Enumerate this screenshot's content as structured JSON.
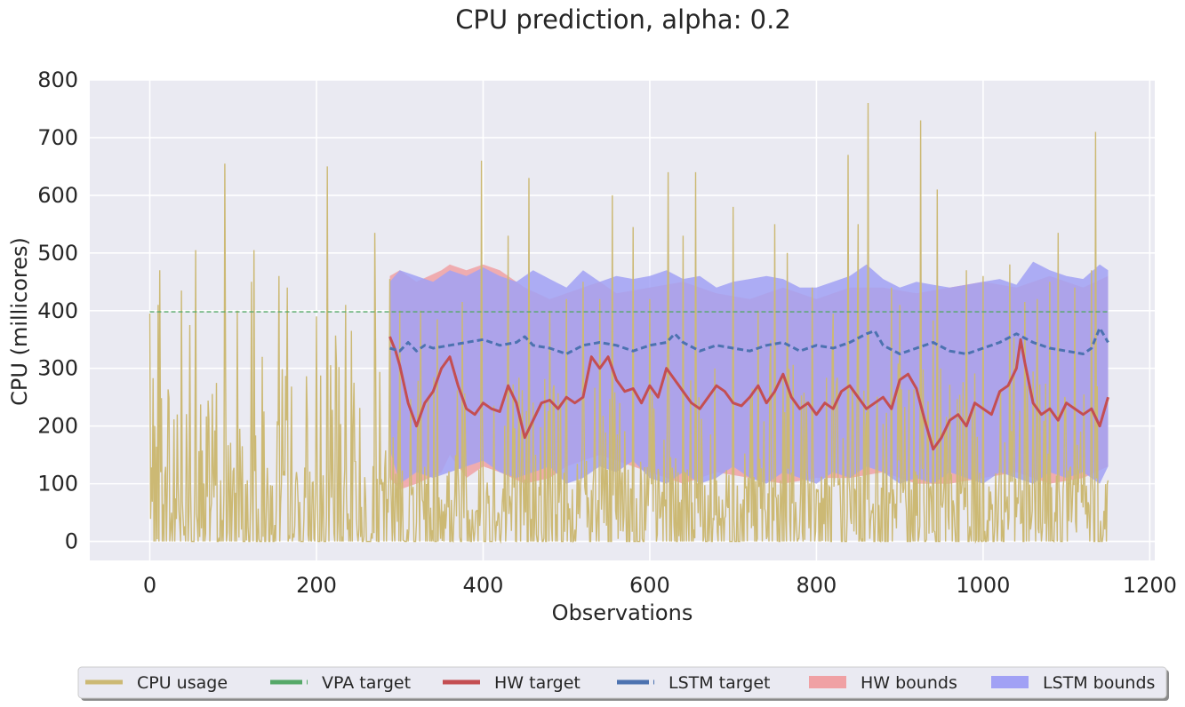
{
  "chart_data": {
    "type": "line",
    "title": "CPU prediction, alpha: 0.2",
    "xlabel": "Observations",
    "ylabel": "CPU (millicores)",
    "xlim": [
      -72,
      1206
    ],
    "ylim": [
      -33,
      800
    ],
    "x_ticks": [
      0,
      200,
      400,
      600,
      800,
      1000,
      1200
    ],
    "x_tick_labels": [
      "0",
      "200",
      "400",
      "600",
      "800",
      "1000",
      "1200"
    ],
    "y_ticks": [
      0,
      100,
      200,
      300,
      400,
      500,
      600,
      700,
      800
    ],
    "y_tick_labels": [
      "0",
      "100",
      "200",
      "300",
      "400",
      "500",
      "600",
      "700",
      "800"
    ],
    "grid": true,
    "legend_position": "bottom-center",
    "background": "#eaeaf2",
    "series": [
      {
        "name": "CPU usage",
        "kind": "line",
        "color": "#ccb974",
        "x_range": [
          0,
          1150
        ],
        "peaks": [
          [
            0,
            395
          ],
          [
            10,
            410
          ],
          [
            12,
            470
          ],
          [
            38,
            435
          ],
          [
            48,
            375
          ],
          [
            55,
            505
          ],
          [
            90,
            655
          ],
          [
            105,
            400
          ],
          [
            122,
            450
          ],
          [
            125,
            505
          ],
          [
            135,
            320
          ],
          [
            155,
            460
          ],
          [
            165,
            440
          ],
          [
            200,
            390
          ],
          [
            213,
            650
          ],
          [
            235,
            410
          ],
          [
            242,
            365
          ],
          [
            270,
            535
          ],
          [
            288,
            455
          ],
          [
            300,
            400
          ],
          [
            325,
            400
          ],
          [
            345,
            385
          ],
          [
            375,
            415
          ],
          [
            398,
            660
          ],
          [
            430,
            530
          ],
          [
            455,
            630
          ],
          [
            480,
            400
          ],
          [
            500,
            420
          ],
          [
            520,
            450
          ],
          [
            540,
            420
          ],
          [
            555,
            600
          ],
          [
            580,
            545
          ],
          [
            600,
            420
          ],
          [
            622,
            640
          ],
          [
            640,
            530
          ],
          [
            655,
            640
          ],
          [
            700,
            580
          ],
          [
            730,
            400
          ],
          [
            750,
            550
          ],
          [
            765,
            500
          ],
          [
            795,
            440
          ],
          [
            820,
            395
          ],
          [
            838,
            670
          ],
          [
            850,
            550
          ],
          [
            862,
            760
          ],
          [
            890,
            440
          ],
          [
            900,
            410
          ],
          [
            925,
            730
          ],
          [
            945,
            610
          ],
          [
            980,
            470
          ],
          [
            1000,
            460
          ],
          [
            1032,
            480
          ],
          [
            1050,
            415
          ],
          [
            1065,
            420
          ],
          [
            1080,
            450
          ],
          [
            1090,
            535
          ],
          [
            1110,
            440
          ],
          [
            1130,
            470
          ],
          [
            1135,
            710
          ]
        ]
      },
      {
        "name": "VPA target",
        "kind": "dashed-line",
        "color": "#55a868",
        "x": [
          0,
          1150
        ],
        "y": [
          398,
          398
        ]
      },
      {
        "name": "HW target",
        "kind": "line",
        "color": "#c44e52",
        "x": [
          288,
          295,
          300,
          310,
          320,
          330,
          340,
          350,
          360,
          370,
          380,
          390,
          400,
          410,
          420,
          430,
          440,
          450,
          460,
          470,
          480,
          490,
          500,
          510,
          520,
          530,
          540,
          550,
          560,
          570,
          580,
          590,
          600,
          610,
          620,
          630,
          640,
          650,
          660,
          670,
          680,
          690,
          700,
          710,
          720,
          730,
          740,
          750,
          760,
          770,
          780,
          790,
          800,
          810,
          820,
          830,
          840,
          850,
          860,
          870,
          880,
          890,
          900,
          910,
          920,
          930,
          940,
          950,
          960,
          970,
          980,
          990,
          1000,
          1010,
          1020,
          1030,
          1040,
          1045,
          1050,
          1060,
          1070,
          1080,
          1090,
          1100,
          1110,
          1120,
          1130,
          1140,
          1150
        ],
        "y": [
          355,
          330,
          305,
          240,
          200,
          240,
          260,
          300,
          320,
          270,
          230,
          220,
          240,
          230,
          225,
          270,
          240,
          180,
          210,
          240,
          245,
          230,
          250,
          240,
          250,
          320,
          300,
          320,
          280,
          260,
          265,
          240,
          270,
          250,
          300,
          280,
          260,
          240,
          230,
          250,
          270,
          260,
          240,
          235,
          250,
          270,
          240,
          260,
          290,
          250,
          230,
          240,
          220,
          240,
          230,
          260,
          270,
          250,
          230,
          240,
          250,
          230,
          280,
          290,
          265,
          210,
          160,
          180,
          210,
          220,
          200,
          240,
          230,
          220,
          260,
          270,
          300,
          350,
          310,
          240,
          220,
          230,
          210,
          240,
          230,
          220,
          230,
          200,
          250
        ]
      },
      {
        "name": "LSTM target",
        "kind": "dashed-line",
        "color": "#4c72b0",
        "x": [
          288,
          300,
          310,
          320,
          330,
          340,
          360,
          380,
          400,
          420,
          440,
          450,
          460,
          480,
          500,
          520,
          540,
          560,
          580,
          600,
          620,
          630,
          640,
          660,
          680,
          700,
          720,
          740,
          760,
          780,
          800,
          820,
          840,
          860,
          870,
          880,
          900,
          920,
          940,
          960,
          980,
          1000,
          1020,
          1040,
          1060,
          1080,
          1100,
          1120,
          1130,
          1140,
          1150
        ],
        "y": [
          335,
          330,
          345,
          330,
          340,
          335,
          340,
          345,
          350,
          340,
          345,
          355,
          340,
          335,
          325,
          340,
          345,
          340,
          330,
          340,
          345,
          360,
          345,
          330,
          340,
          335,
          330,
          340,
          345,
          330,
          340,
          335,
          345,
          360,
          365,
          340,
          325,
          335,
          345,
          330,
          325,
          335,
          345,
          360,
          345,
          335,
          330,
          325,
          335,
          370,
          345
        ]
      },
      {
        "name": "HW bounds",
        "kind": "band",
        "color": "#f0a1a4",
        "x": [
          288,
          300,
          320,
          350,
          360,
          380,
          400,
          420,
          450,
          480,
          500,
          540,
          560,
          600,
          640,
          680,
          720,
          760,
          800,
          840,
          880,
          920,
          960,
          1000,
          1040,
          1080,
          1120,
          1150
        ],
        "lower": [
          110,
          90,
          100,
          120,
          150,
          110,
          130,
          120,
          100,
          110,
          130,
          150,
          140,
          120,
          100,
          120,
          110,
          100,
          110,
          110,
          120,
          100,
          100,
          110,
          120,
          100,
          110,
          130
        ],
        "upper": [
          460,
          470,
          450,
          470,
          480,
          470,
          480,
          470,
          440,
          420,
          430,
          450,
          430,
          440,
          450,
          430,
          420,
          440,
          420,
          440,
          440,
          430,
          440,
          450,
          440,
          460,
          440,
          460
        ]
      },
      {
        "name": "LSTM bounds",
        "kind": "band",
        "color": "#a1a1f5",
        "x": [
          288,
          300,
          320,
          340,
          360,
          380,
          400,
          420,
          440,
          460,
          480,
          500,
          520,
          540,
          560,
          580,
          600,
          620,
          640,
          660,
          680,
          700,
          720,
          740,
          760,
          780,
          800,
          820,
          840,
          860,
          880,
          900,
          920,
          940,
          960,
          980,
          1000,
          1020,
          1040,
          1060,
          1080,
          1100,
          1120,
          1140,
          1150
        ],
        "lower": [
          160,
          100,
          120,
          110,
          120,
          130,
          140,
          120,
          110,
          120,
          130,
          100,
          110,
          130,
          120,
          140,
          110,
          100,
          120,
          100,
          110,
          130,
          110,
          100,
          120,
          110,
          100,
          120,
          110,
          130,
          120,
          100,
          110,
          100,
          120,
          110,
          100,
          120,
          110,
          100,
          120,
          110,
          120,
          100,
          130
        ],
        "upper": [
          450,
          470,
          460,
          450,
          470,
          460,
          475,
          460,
          450,
          470,
          455,
          440,
          470,
          450,
          460,
          455,
          460,
          470,
          455,
          460,
          440,
          450,
          455,
          460,
          455,
          440,
          440,
          450,
          460,
          480,
          455,
          440,
          450,
          445,
          440,
          445,
          450,
          455,
          445,
          485,
          470,
          460,
          455,
          480,
          470
        ]
      }
    ],
    "legend": [
      {
        "label": "CPU usage",
        "color": "#ccb974",
        "style": "line"
      },
      {
        "label": "VPA target",
        "color": "#55a868",
        "style": "dashed"
      },
      {
        "label": "HW target",
        "color": "#c44e52",
        "style": "line"
      },
      {
        "label": "LSTM target",
        "color": "#4c72b0",
        "style": "dashed"
      },
      {
        "label": "HW bounds",
        "color": "#f0a1a4",
        "style": "patch"
      },
      {
        "label": "LSTM bounds",
        "color": "#a1a1f5",
        "style": "patch"
      }
    ]
  }
}
